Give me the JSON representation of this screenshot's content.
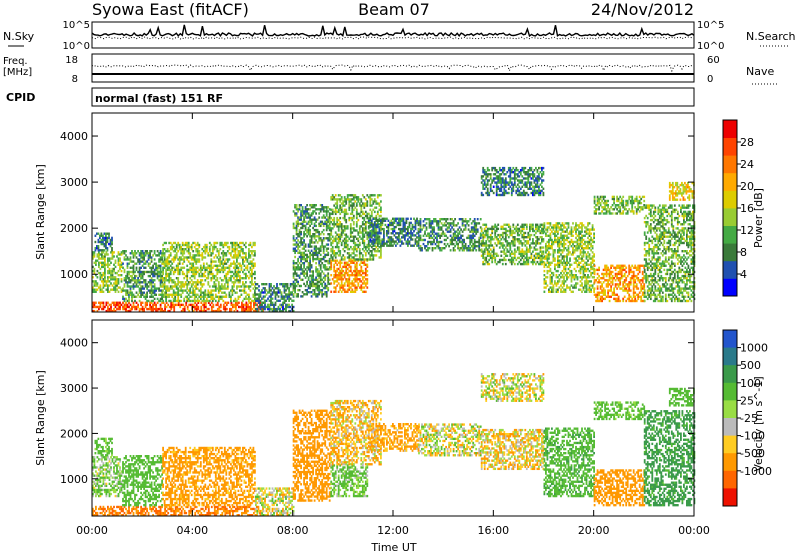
{
  "header": {
    "station": "Syowa East (fitACF)",
    "beam": "Beam 07",
    "date": "24/Nov/2012"
  },
  "noise_panel": {
    "left_label": "N.Sky",
    "right_label": "N.Search",
    "left_ticks": [
      "10^5",
      "10^0"
    ],
    "right_ticks": [
      "10^5",
      "10^0"
    ]
  },
  "freq_panel": {
    "left_label": "Freq.",
    "left_unit": "[MHz]",
    "right_label": "Nave",
    "left_ticks": [
      "18",
      "8"
    ],
    "right_ticks": [
      "60",
      "0"
    ]
  },
  "cpid_panel": {
    "label": "CPID",
    "program": "normal (fast) 151 RF"
  },
  "x_axis": {
    "title": "Time UT",
    "ticks": [
      "00:00",
      "04:00",
      "08:00",
      "12:00",
      "16:00",
      "20:00",
      "00:00"
    ]
  },
  "colors": {
    "power": [
      "#0000ff",
      "#2050b0",
      "#3a7a3a",
      "#44aa44",
      "#99cc33",
      "#ddcc00",
      "#ffaa00",
      "#ff7700",
      "#ff4400",
      "#ee0000"
    ],
    "velocity": [
      "#2255cc",
      "#2a7a8a",
      "#3a9a4a",
      "#55bb33",
      "#99dd44",
      "#bbbbbb",
      "#ffcc22",
      "#ff9900",
      "#ff6600",
      "#ee1100"
    ]
  },
  "chart_data": [
    {
      "type": "heatmap",
      "title": "Power",
      "xlabel": "Time UT",
      "ylabel": "Slant Range [km]",
      "xlim": [
        "00:00",
        "24:00"
      ],
      "ylim": [
        180,
        4500
      ],
      "yticks": [
        "1000",
        "2000",
        "3000",
        "4000"
      ],
      "colorbar": {
        "label": "Power [dB]",
        "min": 0,
        "max": 32,
        "ticks": [
          "4",
          "8",
          "12",
          "16",
          "20",
          "24",
          "28"
        ]
      },
      "regions": [
        {
          "t0": 0.0,
          "t1": 6.8,
          "r0": 180,
          "r1": 400,
          "value": 26
        },
        {
          "t0": 0.0,
          "t1": 1.2,
          "r0": 600,
          "r1": 1500,
          "value": 14
        },
        {
          "t0": 0.1,
          "t1": 0.8,
          "r0": 1500,
          "r1": 1900,
          "value": 8
        },
        {
          "t0": 1.2,
          "t1": 2.8,
          "r0": 400,
          "r1": 1500,
          "value": 10
        },
        {
          "t0": 2.8,
          "t1": 6.5,
          "r0": 400,
          "r1": 1700,
          "value": 14
        },
        {
          "t0": 6.5,
          "t1": 8.0,
          "r0": 180,
          "r1": 800,
          "value": 8
        },
        {
          "t0": 8.0,
          "t1": 9.5,
          "r0": 500,
          "r1": 2500,
          "value": 10
        },
        {
          "t0": 9.5,
          "t1": 11.0,
          "r0": 600,
          "r1": 1300,
          "value": 22
        },
        {
          "t0": 9.5,
          "t1": 11.5,
          "r0": 1300,
          "r1": 2700,
          "value": 12
        },
        {
          "t0": 11.0,
          "t1": 13.0,
          "r0": 1600,
          "r1": 2200,
          "value": 8
        },
        {
          "t0": 13.0,
          "t1": 15.5,
          "r0": 1500,
          "r1": 2200,
          "value": 9
        },
        {
          "t0": 15.5,
          "t1": 18.0,
          "r0": 1200,
          "r1": 2100,
          "value": 12
        },
        {
          "t0": 15.5,
          "t1": 18.0,
          "r0": 2700,
          "r1": 3300,
          "value": 8
        },
        {
          "t0": 18.0,
          "t1": 20.0,
          "r0": 600,
          "r1": 2100,
          "value": 14
        },
        {
          "t0": 20.0,
          "t1": 22.0,
          "r0": 400,
          "r1": 1200,
          "value": 22
        },
        {
          "t0": 20.0,
          "t1": 22.0,
          "r0": 2300,
          "r1": 2700,
          "value": 12
        },
        {
          "t0": 22.0,
          "t1": 24.0,
          "r0": 400,
          "r1": 2500,
          "value": 12
        },
        {
          "t0": 23.0,
          "t1": 24.0,
          "r0": 2600,
          "r1": 3000,
          "value": 18
        }
      ]
    },
    {
      "type": "heatmap",
      "title": "Velocity",
      "xlabel": "Time UT",
      "ylabel": "Slant Range [km]",
      "xlim": [
        "00:00",
        "24:00"
      ],
      "ylim": [
        180,
        4500
      ],
      "yticks": [
        "1000",
        "2000",
        "3000",
        "4000"
      ],
      "colorbar": {
        "label": "Velocity [m s^-1]",
        "ticks": [
          "1000",
          "500",
          "100",
          "25",
          "-25",
          "-100",
          "-500",
          "-1000"
        ]
      },
      "regions": [
        {
          "t0": 0.0,
          "t1": 6.8,
          "r0": 180,
          "r1": 400,
          "value": -500
        },
        {
          "t0": 0.0,
          "t1": 1.2,
          "r0": 600,
          "r1": 1500,
          "value": 100
        },
        {
          "t0": 0.1,
          "t1": 0.8,
          "r0": 1500,
          "r1": 1900,
          "value": 200
        },
        {
          "t0": 1.2,
          "t1": 2.8,
          "r0": 400,
          "r1": 1500,
          "value": 300
        },
        {
          "t0": 2.8,
          "t1": 6.5,
          "r0": 400,
          "r1": 1700,
          "value": -200
        },
        {
          "t0": 6.5,
          "t1": 8.0,
          "r0": 180,
          "r1": 800,
          "value": 0
        },
        {
          "t0": 8.0,
          "t1": 9.5,
          "r0": 500,
          "r1": 2500,
          "value": -300
        },
        {
          "t0": 9.5,
          "t1": 11.0,
          "r0": 600,
          "r1": 1300,
          "value": 150
        },
        {
          "t0": 9.5,
          "t1": 11.5,
          "r0": 1300,
          "r1": 2700,
          "value": -80
        },
        {
          "t0": 11.0,
          "t1": 13.0,
          "r0": 1600,
          "r1": 2200,
          "value": -150
        },
        {
          "t0": 13.0,
          "t1": 15.5,
          "r0": 1500,
          "r1": 2200,
          "value": 0
        },
        {
          "t0": 15.5,
          "t1": 18.0,
          "r0": 1200,
          "r1": 2100,
          "value": -50
        },
        {
          "t0": 15.5,
          "t1": 18.0,
          "r0": 2700,
          "r1": 3300,
          "value": 0
        },
        {
          "t0": 18.0,
          "t1": 20.0,
          "r0": 600,
          "r1": 2100,
          "value": 400
        },
        {
          "t0": 20.0,
          "t1": 22.0,
          "r0": 400,
          "r1": 1200,
          "value": -300
        },
        {
          "t0": 20.0,
          "t1": 22.0,
          "r0": 2300,
          "r1": 2700,
          "value": 200
        },
        {
          "t0": 22.0,
          "t1": 24.0,
          "r0": 400,
          "r1": 2500,
          "value": 600
        },
        {
          "t0": 23.0,
          "t1": 24.0,
          "r0": 2600,
          "r1": 3000,
          "value": 300
        }
      ]
    }
  ]
}
